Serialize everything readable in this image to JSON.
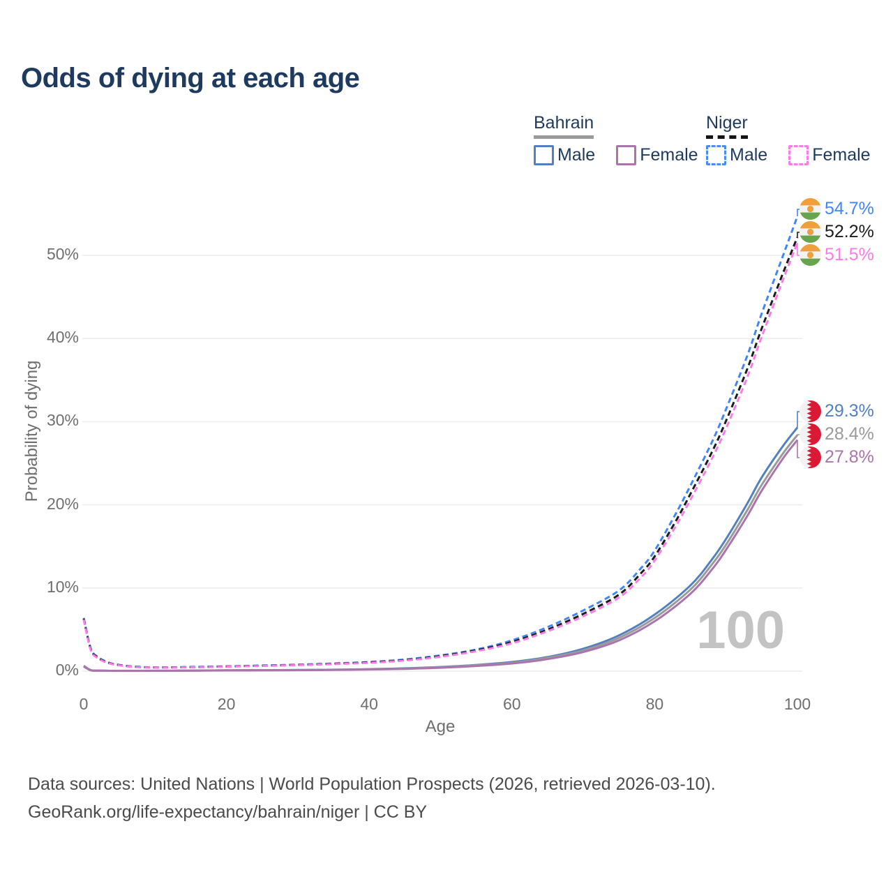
{
  "title": "Odds of dying at each age",
  "legend": {
    "groups": [
      {
        "country": "Bahrain",
        "line_style": "solid",
        "items": [
          {
            "label": "Male"
          },
          {
            "label": "Female"
          }
        ]
      },
      {
        "country": "Niger",
        "line_style": "dashed",
        "items": [
          {
            "label": "Male"
          },
          {
            "label": "Female"
          }
        ]
      }
    ]
  },
  "chart_data": {
    "type": "line",
    "title": "Odds of dying at each age",
    "xlabel": "Age",
    "ylabel": "Probability of dying",
    "xlim": [
      0,
      100
    ],
    "ylim_percent": [
      0,
      57
    ],
    "grid": true,
    "watermark": "100",
    "x_ticks": [
      0,
      20,
      40,
      60,
      80,
      100
    ],
    "y_ticks": [
      {
        "value": 0,
        "label": "0%"
      },
      {
        "value": 10,
        "label": "10%"
      },
      {
        "value": 20,
        "label": "20%"
      },
      {
        "value": 30,
        "label": "30%"
      },
      {
        "value": 40,
        "label": "40%"
      },
      {
        "value": 50,
        "label": "50%"
      }
    ],
    "series": [
      {
        "name": "Niger — Male",
        "country": "Niger",
        "sex": "male",
        "color": "#4285f4",
        "dash": "dashed",
        "end_label": "54.7%",
        "points": [
          [
            0,
            6.4
          ],
          [
            1,
            2.7
          ],
          [
            2,
            1.7
          ],
          [
            3,
            1.2
          ],
          [
            4,
            0.9
          ],
          [
            5,
            0.75
          ],
          [
            7,
            0.55
          ],
          [
            10,
            0.45
          ],
          [
            15,
            0.5
          ],
          [
            20,
            0.58
          ],
          [
            25,
            0.68
          ],
          [
            30,
            0.78
          ],
          [
            35,
            0.92
          ],
          [
            40,
            1.1
          ],
          [
            45,
            1.4
          ],
          [
            50,
            1.9
          ],
          [
            55,
            2.6
          ],
          [
            60,
            3.7
          ],
          [
            65,
            5.3
          ],
          [
            70,
            7.3
          ],
          [
            75,
            9.7
          ],
          [
            78,
            12.3
          ],
          [
            80,
            14.5
          ],
          [
            83,
            19
          ],
          [
            85,
            22.3
          ],
          [
            88,
            27.5
          ],
          [
            90,
            31.5
          ],
          [
            93,
            38
          ],
          [
            95,
            43
          ],
          [
            98,
            50
          ],
          [
            100,
            54.7
          ]
        ]
      },
      {
        "name": "Niger — Both sexes",
        "country": "Niger",
        "sex": "both",
        "color": "#1c1c1c",
        "dash": "dashed",
        "end_label": "52.2%",
        "points": [
          [
            0,
            6.3
          ],
          [
            1,
            2.6
          ],
          [
            2,
            1.6
          ],
          [
            3,
            1.15
          ],
          [
            4,
            0.87
          ],
          [
            5,
            0.72
          ],
          [
            7,
            0.53
          ],
          [
            10,
            0.44
          ],
          [
            15,
            0.48
          ],
          [
            20,
            0.56
          ],
          [
            25,
            0.65
          ],
          [
            30,
            0.75
          ],
          [
            35,
            0.88
          ],
          [
            40,
            1.05
          ],
          [
            45,
            1.33
          ],
          [
            50,
            1.8
          ],
          [
            55,
            2.5
          ],
          [
            60,
            3.5
          ],
          [
            65,
            5.0
          ],
          [
            70,
            6.9
          ],
          [
            75,
            9.2
          ],
          [
            78,
            11.7
          ],
          [
            80,
            13.8
          ],
          [
            83,
            18.1
          ],
          [
            85,
            21.3
          ],
          [
            88,
            26.3
          ],
          [
            90,
            30.1
          ],
          [
            93,
            36.4
          ],
          [
            95,
            41.2
          ],
          [
            98,
            47.9
          ],
          [
            100,
            52.2
          ]
        ]
      },
      {
        "name": "Niger — Female",
        "country": "Niger",
        "sex": "female",
        "color": "#fb7ce9",
        "dash": "dashed",
        "end_label": "51.5%",
        "points": [
          [
            0,
            6.2
          ],
          [
            1,
            2.5
          ],
          [
            2,
            1.55
          ],
          [
            3,
            1.1
          ],
          [
            4,
            0.84
          ],
          [
            5,
            0.7
          ],
          [
            7,
            0.51
          ],
          [
            10,
            0.43
          ],
          [
            15,
            0.46
          ],
          [
            20,
            0.54
          ],
          [
            25,
            0.63
          ],
          [
            30,
            0.72
          ],
          [
            35,
            0.85
          ],
          [
            40,
            1.0
          ],
          [
            45,
            1.28
          ],
          [
            50,
            1.73
          ],
          [
            55,
            2.4
          ],
          [
            60,
            3.35
          ],
          [
            65,
            4.8
          ],
          [
            70,
            6.6
          ],
          [
            75,
            8.85
          ],
          [
            78,
            11.2
          ],
          [
            80,
            13.3
          ],
          [
            83,
            17.5
          ],
          [
            85,
            20.6
          ],
          [
            88,
            25.5
          ],
          [
            90,
            29.2
          ],
          [
            93,
            35.4
          ],
          [
            95,
            40.2
          ],
          [
            98,
            47.1
          ],
          [
            100,
            51.5
          ]
        ]
      },
      {
        "name": "Bahrain — Male",
        "country": "Bahrain",
        "sex": "male",
        "color": "#5380bf",
        "dash": "solid",
        "end_label": "29.3%",
        "points": [
          [
            0,
            0.65
          ],
          [
            1,
            0.12
          ],
          [
            2,
            0.07
          ],
          [
            3,
            0.055
          ],
          [
            5,
            0.045
          ],
          [
            10,
            0.05
          ],
          [
            15,
            0.07
          ],
          [
            20,
            0.1
          ],
          [
            25,
            0.12
          ],
          [
            30,
            0.14
          ],
          [
            35,
            0.18
          ],
          [
            40,
            0.24
          ],
          [
            45,
            0.34
          ],
          [
            50,
            0.5
          ],
          [
            55,
            0.75
          ],
          [
            60,
            1.1
          ],
          [
            65,
            1.7
          ],
          [
            70,
            2.7
          ],
          [
            75,
            4.3
          ],
          [
            80,
            6.8
          ],
          [
            85,
            10.3
          ],
          [
            88,
            13.4
          ],
          [
            90,
            15.9
          ],
          [
            93,
            20.2
          ],
          [
            95,
            23.3
          ],
          [
            98,
            27.1
          ],
          [
            100,
            29.3
          ]
        ]
      },
      {
        "name": "Bahrain — Both sexes",
        "country": "Bahrain",
        "sex": "both",
        "color": "#9a9a9a",
        "dash": "solid",
        "end_label": "28.4%",
        "points": [
          [
            0,
            0.6
          ],
          [
            1,
            0.11
          ],
          [
            2,
            0.065
          ],
          [
            3,
            0.05
          ],
          [
            5,
            0.04
          ],
          [
            10,
            0.045
          ],
          [
            15,
            0.065
          ],
          [
            20,
            0.09
          ],
          [
            25,
            0.11
          ],
          [
            30,
            0.13
          ],
          [
            35,
            0.17
          ],
          [
            40,
            0.22
          ],
          [
            45,
            0.31
          ],
          [
            50,
            0.46
          ],
          [
            55,
            0.7
          ],
          [
            60,
            1.0
          ],
          [
            65,
            1.6
          ],
          [
            70,
            2.5
          ],
          [
            75,
            4.0
          ],
          [
            80,
            6.4
          ],
          [
            85,
            9.8
          ],
          [
            88,
            12.8
          ],
          [
            90,
            15.2
          ],
          [
            93,
            19.4
          ],
          [
            95,
            22.4
          ],
          [
            98,
            26.2
          ],
          [
            100,
            28.4
          ]
        ]
      },
      {
        "name": "Bahrain — Female",
        "country": "Bahrain",
        "sex": "female",
        "color": "#ab74ad",
        "dash": "solid",
        "end_label": "27.8%",
        "points": [
          [
            0,
            0.55
          ],
          [
            1,
            0.1
          ],
          [
            2,
            0.06
          ],
          [
            3,
            0.045
          ],
          [
            5,
            0.035
          ],
          [
            10,
            0.04
          ],
          [
            15,
            0.055
          ],
          [
            20,
            0.08
          ],
          [
            25,
            0.1
          ],
          [
            30,
            0.12
          ],
          [
            35,
            0.15
          ],
          [
            40,
            0.2
          ],
          [
            45,
            0.28
          ],
          [
            50,
            0.41
          ],
          [
            55,
            0.62
          ],
          [
            60,
            0.92
          ],
          [
            65,
            1.45
          ],
          [
            70,
            2.3
          ],
          [
            75,
            3.7
          ],
          [
            80,
            6.0
          ],
          [
            85,
            9.3
          ],
          [
            88,
            12.2
          ],
          [
            90,
            14.6
          ],
          [
            93,
            18.7
          ],
          [
            95,
            21.7
          ],
          [
            98,
            25.6
          ],
          [
            100,
            27.8
          ]
        ]
      }
    ]
  },
  "footer": {
    "line1": "Data sources: United Nations | World Population Prospects (2026, retrieved 2026-03-10).",
    "line2": "GeoRank.org/life-expectancy/bahrain/niger | CC BY"
  },
  "colors": {
    "title": "#1e3a5f",
    "axis_text": "#6f6f6f",
    "grid": "#ebebeb",
    "watermark": "#c3c3c3",
    "footer_text": "#4b4b4b",
    "bahrain_male": "#5380bf",
    "bahrain_avg": "#9a9a9a",
    "bahrain_female": "#ab74ad",
    "niger_male": "#4a8cf5",
    "niger_avg": "#1c1c1c",
    "niger_female": "#fb7ce9",
    "flag_niger_orange": "#efa03c",
    "flag_niger_green": "#67a44b",
    "flag_bahrain_red": "#da1a35"
  }
}
